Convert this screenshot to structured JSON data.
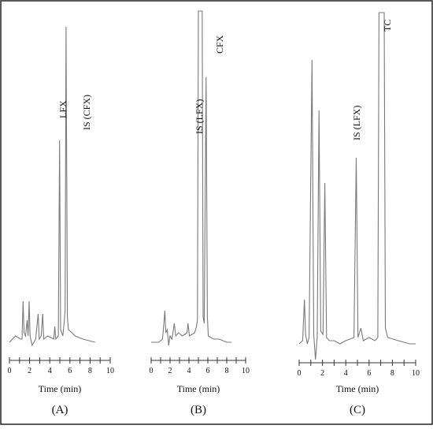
{
  "chart_data": [
    {
      "type": "line",
      "panel_label": "(A)",
      "xlabel": "Time (min)",
      "xlim": [
        0,
        10
      ],
      "x_ticks": [
        "0",
        "2",
        "4",
        "6",
        "8",
        "10"
      ],
      "peak_labels": [
        {
          "text": "LFX",
          "x": 5.0
        },
        {
          "text": "IS (CFX)",
          "x": 5.6
        }
      ],
      "series": [
        {
          "color": "#7a7a7a",
          "points": [
            [
              0.0,
              0.0
            ],
            [
              0.6,
              0.02
            ],
            [
              1.1,
              0.01
            ],
            [
              1.25,
              0.01
            ],
            [
              1.35,
              0.13
            ],
            [
              1.45,
              0.03
            ],
            [
              1.6,
              0.02
            ],
            [
              1.75,
              0.07
            ],
            [
              1.85,
              0.02
            ],
            [
              1.95,
              0.13
            ],
            [
              2.05,
              0.02
            ],
            [
              2.25,
              -0.01
            ],
            [
              2.6,
              0.01
            ],
            [
              2.85,
              0.09
            ],
            [
              2.95,
              0.01
            ],
            [
              3.15,
              0.02
            ],
            [
              3.3,
              0.09
            ],
            [
              3.4,
              0.01
            ],
            [
              3.8,
              0.02
            ],
            [
              4.4,
              0.01
            ],
            [
              4.5,
              0.05
            ],
            [
              4.6,
              0.01
            ],
            [
              4.85,
              0.02
            ],
            [
              4.98,
              0.64
            ],
            [
              5.08,
              0.04
            ],
            [
              5.3,
              0.02
            ],
            [
              5.42,
              0.06
            ],
            [
              5.52,
              0.1
            ],
            [
              5.62,
              1.0
            ],
            [
              5.75,
              0.08
            ],
            [
              5.85,
              0.04
            ],
            [
              6.2,
              0.03
            ],
            [
              6.5,
              0.02
            ],
            [
              7.3,
              0.01
            ],
            [
              8.5,
              0.0
            ]
          ]
        }
      ]
    },
    {
      "type": "line",
      "panel_label": "(B)",
      "xlabel": "Time (min)",
      "xlim": [
        0,
        10
      ],
      "x_ticks": [
        "0",
        "2",
        "4",
        "6",
        "8",
        "10"
      ],
      "peak_labels": [
        {
          "text": "IS (LFX)",
          "x": 5.1
        },
        {
          "text": "CFX",
          "x": 5.9
        }
      ],
      "series": [
        {
          "color": "#7a7a7a",
          "points": [
            [
              0.0,
              0.0
            ],
            [
              0.8,
              0.0
            ],
            [
              1.2,
              0.01
            ],
            [
              1.35,
              0.06
            ],
            [
              1.45,
              0.1
            ],
            [
              1.55,
              0.03
            ],
            [
              1.7,
              0.04
            ],
            [
              1.85,
              -0.01
            ],
            [
              2.0,
              0.02
            ],
            [
              2.2,
              0.01
            ],
            [
              2.45,
              0.06
            ],
            [
              2.6,
              0.02
            ],
            [
              2.9,
              0.03
            ],
            [
              3.3,
              0.02
            ],
            [
              3.8,
              0.03
            ],
            [
              3.9,
              0.06
            ],
            [
              4.05,
              0.02
            ],
            [
              4.6,
              0.03
            ],
            [
              4.8,
              0.05
            ],
            [
              4.9,
              0.07
            ],
            [
              5.0,
              1.05
            ],
            [
              5.4,
              1.05
            ],
            [
              5.5,
              0.08
            ],
            [
              5.62,
              0.06
            ],
            [
              5.82,
              0.84
            ],
            [
              5.95,
              0.08
            ],
            [
              6.05,
              0.02
            ],
            [
              6.6,
              0.01
            ],
            [
              7.2,
              0.01
            ],
            [
              8.0,
              0.0
            ],
            [
              8.5,
              0.0
            ]
          ]
        }
      ]
    },
    {
      "type": "line",
      "panel_label": "(C)",
      "xlabel": "Time (min)",
      "xlim": [
        0,
        10
      ],
      "x_ticks": [
        "0",
        "2",
        "4",
        "6",
        "8",
        "10"
      ],
      "peak_labels": [
        {
          "text": "IS (LFX)",
          "x": 4.9
        },
        {
          "text": "TC",
          "x": 7.1
        }
      ],
      "series": [
        {
          "color": "#7a7a7a",
          "points": [
            [
              0.0,
              0.0
            ],
            [
              0.3,
              0.01
            ],
            [
              0.45,
              0.14
            ],
            [
              0.55,
              0.03
            ],
            [
              0.7,
              0.0
            ],
            [
              0.85,
              0.02
            ],
            [
              1.1,
              0.9
            ],
            [
              1.25,
              0.03
            ],
            [
              1.4,
              -0.05
            ],
            [
              1.55,
              0.02
            ],
            [
              1.7,
              0.74
            ],
            [
              1.85,
              0.04
            ],
            [
              2.05,
              0.03
            ],
            [
              2.2,
              0.51
            ],
            [
              2.35,
              0.02
            ],
            [
              2.6,
              0.01
            ],
            [
              3.0,
              0.01
            ],
            [
              3.5,
              0.0
            ],
            [
              4.0,
              0.01
            ],
            [
              4.7,
              0.02
            ],
            [
              4.9,
              0.59
            ],
            [
              5.05,
              0.02
            ],
            [
              5.3,
              0.05
            ],
            [
              5.5,
              0.01
            ],
            [
              6.0,
              0.02
            ],
            [
              6.5,
              0.01
            ],
            [
              6.75,
              0.02
            ],
            [
              6.85,
              1.05
            ],
            [
              7.3,
              1.05
            ],
            [
              7.4,
              0.05
            ],
            [
              7.6,
              0.02
            ],
            [
              8.5,
              0.01
            ],
            [
              9.5,
              0.0
            ],
            [
              10.0,
              0.0
            ]
          ]
        }
      ]
    }
  ]
}
